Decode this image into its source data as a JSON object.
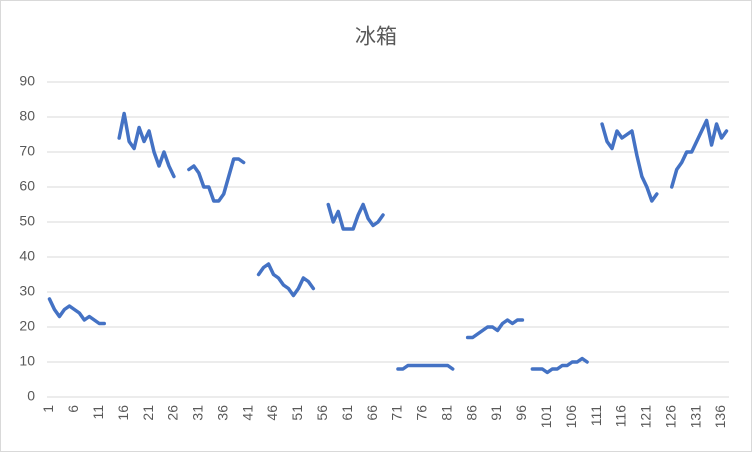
{
  "chart_data": {
    "type": "line",
    "title": "冰箱",
    "categories": [
      1,
      null,
      null,
      null,
      null,
      6,
      null,
      null,
      null,
      null,
      11,
      null,
      null,
      null,
      null,
      16,
      null,
      null,
      null,
      null,
      21,
      null,
      null,
      null,
      null,
      26,
      null,
      null,
      null,
      null,
      31,
      null,
      null,
      null,
      null,
      36,
      null,
      null,
      null,
      null,
      41,
      null,
      null,
      null,
      null,
      46,
      null,
      null,
      null,
      null,
      51,
      null,
      null,
      null,
      null,
      56,
      null,
      null,
      null,
      null,
      61,
      null,
      null,
      null,
      null,
      66,
      null,
      null,
      null,
      null,
      71,
      null,
      null,
      null,
      null,
      76,
      null,
      null,
      null,
      null,
      81,
      null,
      null,
      null,
      null,
      86,
      null,
      null,
      null,
      null,
      91,
      null,
      null,
      null,
      null,
      96,
      null,
      null,
      null,
      null,
      101,
      null,
      null,
      null,
      null,
      106,
      null,
      null,
      null,
      null,
      111,
      null,
      null,
      null,
      null,
      116,
      null,
      null,
      null,
      null,
      121,
      null,
      null,
      null,
      null,
      126,
      null,
      null,
      null,
      null,
      131,
      null,
      null,
      null,
      null,
      136,
      null
    ],
    "series": [
      {
        "color": "#4472c4",
        "values": [
          28,
          25,
          23,
          25,
          26,
          25,
          24,
          22,
          23,
          22,
          21,
          21,
          null,
          null,
          74,
          81,
          73,
          71,
          77,
          73,
          76,
          70,
          66,
          70,
          66,
          63,
          null,
          null,
          65,
          66,
          64,
          60,
          60,
          56,
          56,
          58,
          63,
          68,
          68,
          67,
          null,
          null,
          35,
          37,
          38,
          35,
          34,
          32,
          31,
          29,
          31,
          34,
          33,
          31,
          null,
          null,
          55,
          50,
          53,
          48,
          48,
          48,
          52,
          55,
          51,
          49,
          50,
          52,
          null,
          null,
          8,
          8,
          9,
          9,
          9,
          9,
          9,
          9,
          9,
          9,
          9,
          8,
          null,
          null,
          17,
          17,
          18,
          19,
          20,
          20,
          19,
          21,
          22,
          21,
          22,
          22,
          null,
          8,
          8,
          8,
          7,
          8,
          8,
          9,
          9,
          10,
          10,
          11,
          10,
          null,
          null,
          78,
          73,
          71,
          76,
          74,
          75,
          76,
          69,
          63,
          60,
          56,
          58,
          null,
          null,
          60,
          65,
          67,
          70,
          70,
          73,
          76,
          79,
          72,
          78,
          74,
          76
        ]
      }
    ],
    "ylim": [
      0,
      90
    ],
    "yticks": [
      0,
      10,
      20,
      30,
      40,
      50,
      60,
      70,
      80,
      90
    ],
    "grid": true
  }
}
